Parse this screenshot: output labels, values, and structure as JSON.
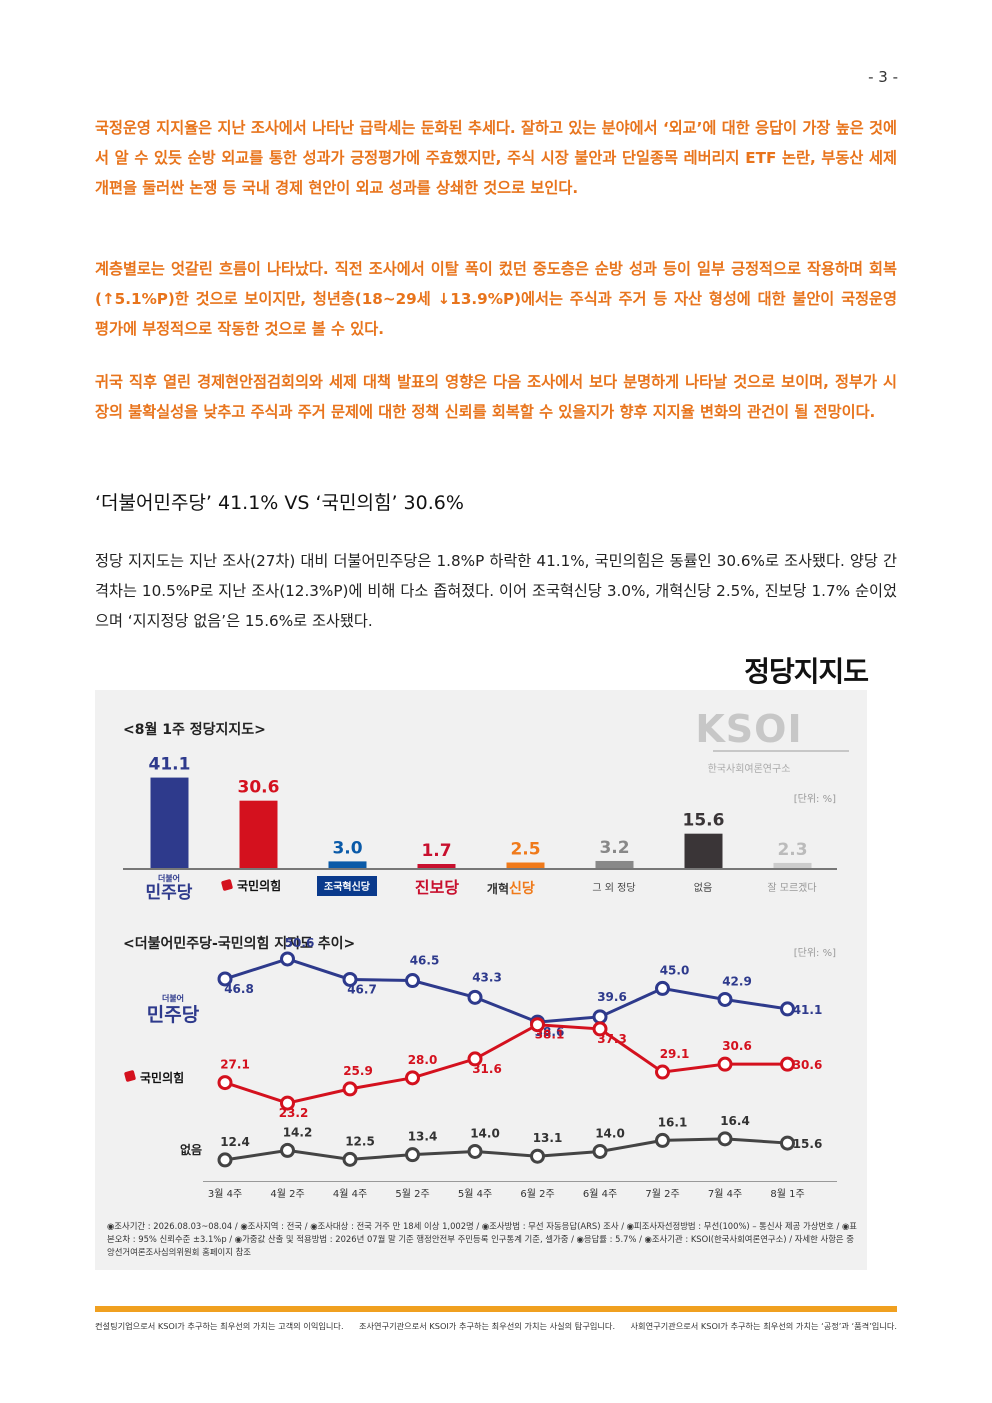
{
  "page_number": "- 3 -",
  "paragraphs_orange": [
    "국정운영 지지율은 지난 조사에서 나타난 급락세는 둔화된 추세다. 잘하고 있는 분야에서 ‘외교’에 대한 응답이 가장 높은 것에서 알 수 있듯 순방 외교를 통한 성과가 긍정평가에 주효했지만, 주식 시장 불안과 단일종목 레버리지 ETF 논란, 부동산 세제 개편을 둘러싼 논쟁 등 국내 경제 현안이 외교 성과를 상쇄한 것으로 보인다.",
    "계층별로는 엇갈린 흐름이 나타났다. 직전 조사에서 이탈 폭이 컸던 중도층은 순방 성과 등이 일부 긍정적으로 작용하며 회복(↑5.1%P)한 것으로 보이지만, 청년층(18~29세 ↓13.9%P)에서는 주식과 주거 등 자산 형성에 대한 불안이 국정운영 평가에 부정적으로 작동한 것으로 볼 수 있다.",
    "귀국 직후 열린 경제현안점검회의와 세제 대책 발표의 영향은 다음 조사에서 보다 분명하게 나타날 것으로 보이며, 정부가 시장의 불확실성을 낮추고 주식과 주거 문제에 대한 정책 신뢰를 회복할 수 있을지가 향후 지지율 변화의 관건이 될 전망이다."
  ],
  "section_heading": "‘더불어민주당’ 41.1% VS ‘국민의힘’ 30.6%",
  "body_paragraph": "정당 지지도는 지난 조사(27차) 대비 더불어민주당은 1.8%P 하락한 41.1%, 국민의힘은 동률인 30.6%로 조사됐다. 양당 간 격차는 10.5%P로 지난 조사(12.3%P)에 비해 다소 좁혀졌다. 이어 조국혁신당 3.0%, 개혁신당 2.5%, 진보당 1.7% 순이었으며 ‘지지정당 없음’은 15.6%로 조사됐다.",
  "chart_block_title": "정당지지도",
  "logo": {
    "text": "KSOI",
    "subtitle": "한국사회여론연구소"
  },
  "chart_data": [
    {
      "type": "bar",
      "title": "<8월 1주 정당지지도>",
      "unit": "[단위: %]",
      "categories": [
        "더불어 민주당",
        "국민의힘",
        "조국혁신당",
        "진보당",
        "개혁신당",
        "그 외 정당",
        "없음",
        "잘 모르겠다"
      ],
      "values": [
        41.1,
        30.6,
        3.0,
        1.7,
        2.5,
        3.2,
        15.6,
        2.3
      ],
      "colors": [
        "#2e3a8c",
        "#d4111e",
        "#0a5aa8",
        "#c8102e",
        "#f07a1a",
        "#888888",
        "#3a3537",
        "#cccccc"
      ],
      "ylim": [
        0,
        45
      ]
    },
    {
      "type": "line",
      "title": "<더불어민주당-국민의힘 지지도 추이>",
      "unit": "[단위: %]",
      "x": [
        "3월 4주",
        "4월 2주",
        "4월 4주",
        "5월 2주",
        "5월 4주",
        "6월 2주",
        "6월 4주",
        "7월 2주",
        "7월 4주",
        "8월 1주"
      ],
      "series": [
        {
          "name": "민주당",
          "color": "#2e3a8c",
          "values": [
            46.8,
            50.6,
            46.7,
            46.5,
            43.3,
            38.6,
            39.6,
            45.0,
            42.9,
            41.1
          ]
        },
        {
          "name": "국민의힘",
          "color": "#d4111e",
          "values": [
            27.1,
            23.2,
            25.9,
            28.0,
            31.6,
            38.1,
            37.3,
            29.1,
            30.6,
            30.6
          ]
        },
        {
          "name": "없음",
          "color": "#444444",
          "values": [
            12.4,
            14.2,
            12.5,
            13.4,
            14.0,
            13.1,
            14.0,
            16.1,
            16.4,
            15.6
          ]
        }
      ]
    }
  ],
  "party_labels": {
    "minjoo_small": "더불어",
    "minjoo": "민주당",
    "ppp": "국민의힘",
    "jokuk": "조국혁신당",
    "jinbo": "진보당",
    "gaehyuk_a": "개혁",
    "gaehyuk_b": "신당",
    "etc": "그 외 정당",
    "none": "없음",
    "dunno": "잘 모르겠다"
  },
  "survey_note": "◉조사기간 : 2026.08.03~08.04 / ◉조사지역 : 전국 / ◉조사대상 : 전국 거주 만 18세 이상 1,002명 / ◉조사방법 : 무선 자동응답(ARS) 조사 / ◉피조사자선정방법 : 무선(100%) – 통신사 제공 가상번호 / ◉표본오차 : 95% 신뢰수준 ±3.1%p / ◉가중값 산출 및 적용방법 : 2026년 07월 말 기준 행정안전부 주민등록 인구통계 기준, 셀가중 / ◉응답률 : 5.7% / ◉조사기관 : KSOI(한국사회여론연구소) / 자세한 사항은 중앙선거여론조사심의위원회 홈페이지 참조",
  "footer": [
    "컨설팅기업으로서 KSOI가 추구하는 최우선의 가치는 고객의 이익입니다.",
    "조사연구기관으로서 KSOI가 추구하는 최우선의 가치는 사실의 탐구입니다.",
    "사회연구기관으로서 KSOI가 추구하는 최우선의 가치는 ‘공정’과 ‘품격’입니다."
  ]
}
